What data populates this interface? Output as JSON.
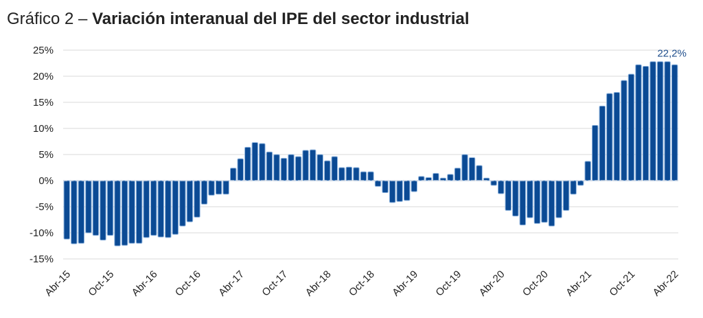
{
  "chart_data": {
    "type": "bar",
    "title_prefix": "Gráfico 2 –",
    "title": "Variación interanual del IPE del sector industrial",
    "xlabel": "",
    "ylabel": "",
    "ylim": [
      -15,
      25
    ],
    "yticks": [
      25,
      20,
      15,
      10,
      5,
      0,
      -5,
      -10,
      -15
    ],
    "ytick_labels": [
      "25%",
      "20%",
      "15%",
      "10%",
      "5%",
      "0%",
      "-5%",
      "-10%",
      "-15%"
    ],
    "xtick_labels": [
      "Abr-15",
      "Oct-15",
      "Abr-16",
      "Oct-16",
      "Abr-17",
      "Oct-17",
      "Abr-18",
      "Oct-18",
      "Abr-19",
      "Oct-19",
      "Abr-20",
      "Oct-20",
      "Abr-21",
      "Oct-21",
      "Abr-22"
    ],
    "grid": true,
    "unit": "%",
    "values": [
      -11.2,
      -12.1,
      -12.0,
      -10.0,
      -10.5,
      -11.4,
      -10.5,
      -12.5,
      -12.4,
      -12.0,
      -12.0,
      -10.9,
      -10.5,
      -10.8,
      -10.9,
      -10.3,
      -8.7,
      -7.9,
      -7.0,
      -4.5,
      -2.8,
      -2.6,
      -2.6,
      2.4,
      4.2,
      6.4,
      7.3,
      7.1,
      5.5,
      5.0,
      4.3,
      5.0,
      4.6,
      5.8,
      5.9,
      5.0,
      3.8,
      4.6,
      2.5,
      2.6,
      2.5,
      1.7,
      1.7,
      -1.1,
      -2.3,
      -4.2,
      -4.0,
      -3.8,
      -2.1,
      0.8,
      0.6,
      1.4,
      0.5,
      1.2,
      2.4,
      5.0,
      4.4,
      2.9,
      0.5,
      -0.9,
      -2.5,
      -5.7,
      -6.8,
      -8.5,
      -7.1,
      -8.2,
      -8.0,
      -8.7,
      -7.1,
      -5.7,
      -2.6,
      -0.9,
      3.7,
      10.6,
      14.3,
      16.7,
      16.9,
      19.2,
      20.4,
      22.2,
      21.9,
      22.8,
      22.8,
      22.8,
      22.2
    ],
    "annotation": "22,2%",
    "bar_color": "#0b4a94",
    "annotation_color": "#1f4e8c"
  }
}
